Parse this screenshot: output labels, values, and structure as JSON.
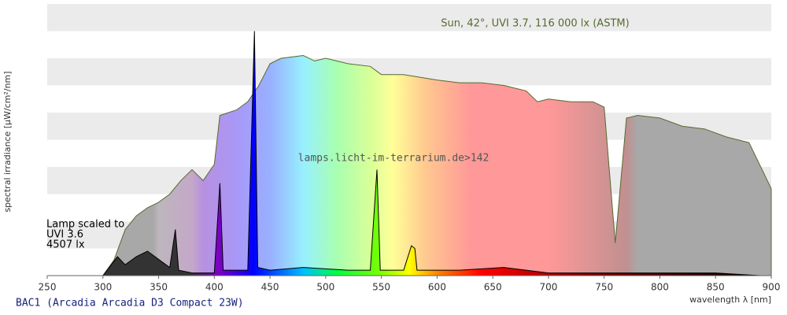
{
  "chart_data": {
    "type": "area",
    "ylabel": "spectral irradiance [µW/cm²/nm]",
    "xlabel": "wavelength λ [nm]",
    "watermark": "lamps.licht-im-terrarium.de>142",
    "annotations": [
      "Lamp scaled to",
      "UVI 3.6",
      "4507 lx"
    ],
    "xlim": [
      250,
      900
    ],
    "xticks": [
      250,
      300,
      350,
      400,
      450,
      500,
      550,
      600,
      650,
      700,
      750,
      800,
      850,
      900
    ],
    "ylim": [
      0,
      100
    ],
    "series": [
      {
        "name": "Sun, 42°, UVI 3.7, 116 000 lx (ASTM)",
        "color": "#556b2f",
        "x": [
          300,
          310,
          320,
          330,
          340,
          350,
          360,
          370,
          380,
          390,
          400,
          405,
          420,
          430,
          440,
          450,
          460,
          480,
          490,
          500,
          520,
          540,
          550,
          570,
          600,
          620,
          640,
          660,
          680,
          690,
          700,
          720,
          740,
          750,
          760,
          770,
          780,
          800,
          820,
          840,
          860,
          880,
          900
        ],
        "values": [
          0,
          5.8,
          17,
          22,
          25,
          27,
          30,
          35,
          39,
          35,
          41,
          59,
          61,
          64,
          70,
          78,
          80,
          81,
          79,
          80,
          78,
          77,
          74,
          74,
          72,
          71,
          71,
          70,
          68,
          64,
          65,
          64,
          64,
          62,
          12,
          58,
          59,
          58,
          55,
          54,
          51,
          49,
          32
        ]
      },
      {
        "name": "BAC1 (Arcadia Arcadia D3 Compact 23W)",
        "color": "#000000",
        "x": [
          300,
          313,
          320,
          330,
          340,
          350,
          360,
          365,
          368,
          380,
          400,
          405,
          408,
          430,
          436,
          439,
          450,
          480,
          520,
          540,
          546,
          549,
          570,
          577,
          580,
          582,
          620,
          660,
          700,
          750,
          800,
          850,
          890
        ],
        "values": [
          0,
          7,
          4,
          7,
          9,
          6,
          3,
          17,
          2,
          1,
          1,
          34,
          2,
          2,
          90,
          3,
          2,
          3,
          2,
          2,
          39,
          2,
          2,
          11,
          10,
          2,
          2,
          3,
          1,
          1,
          1,
          1,
          0
        ]
      }
    ]
  }
}
